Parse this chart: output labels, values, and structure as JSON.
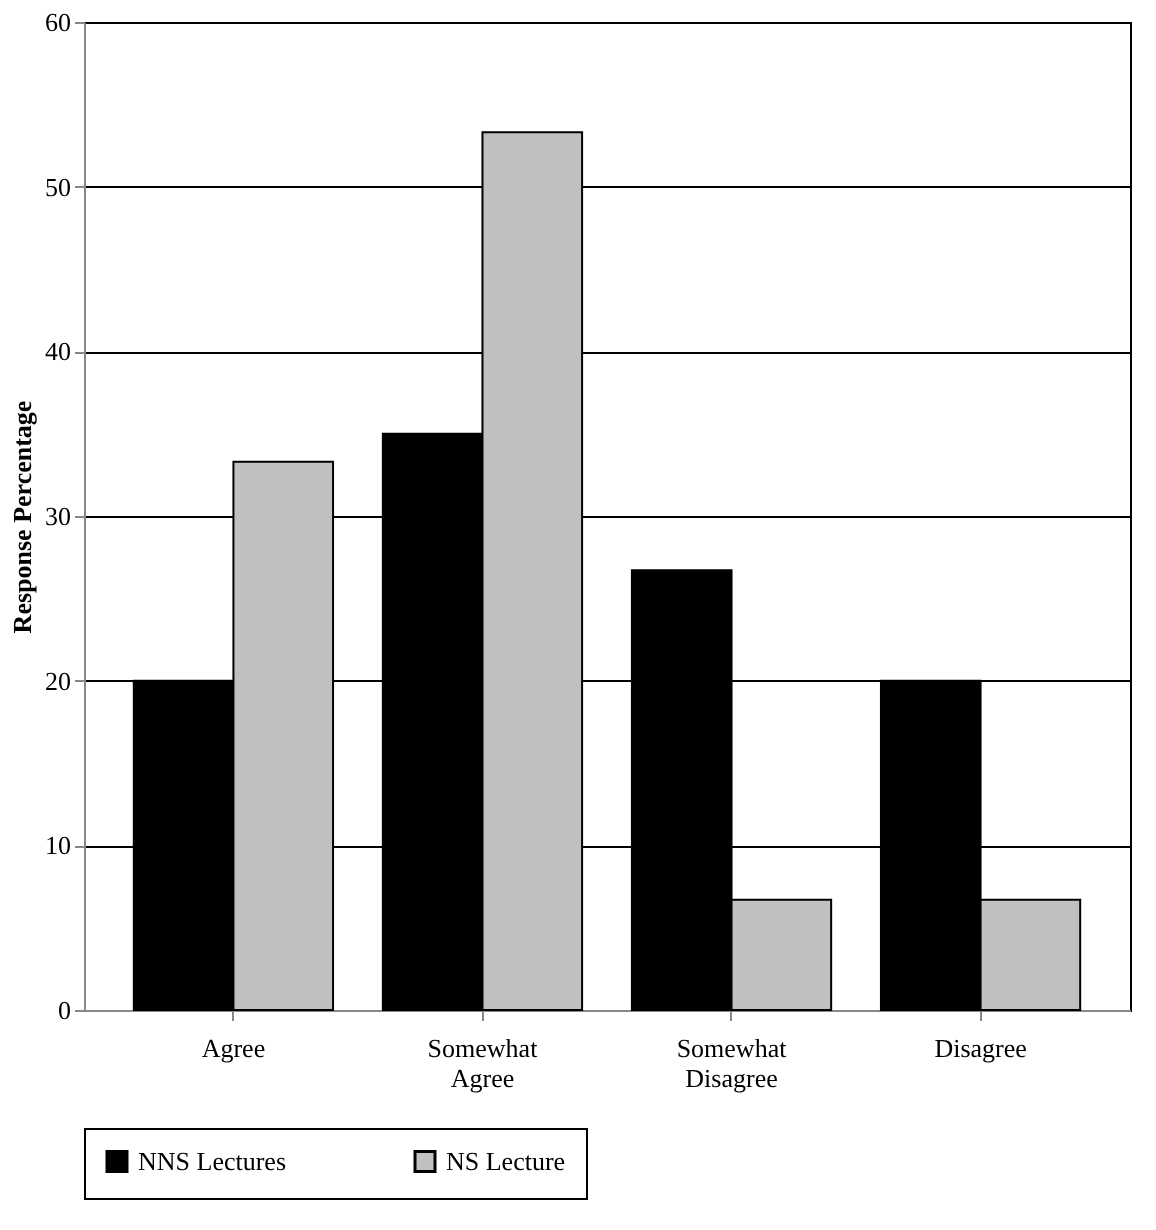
{
  "chart_data": {
    "type": "bar",
    "ylabel": "Response Percentage",
    "categories": [
      "Agree",
      "Somewhat Agree",
      "Somewhat Disagree",
      "Disagree"
    ],
    "series": [
      {
        "name": "NNS Lectures",
        "color": "#000000",
        "values": [
          20,
          35,
          26.7,
          20
        ]
      },
      {
        "name": "NS Lecture",
        "color": "#c0c0c0",
        "values": [
          33.3,
          53.3,
          6.7,
          6.7
        ]
      }
    ],
    "ylim": [
      0,
      60
    ],
    "yticks": [
      0,
      10,
      20,
      30,
      40,
      50,
      60
    ],
    "grid": "y",
    "legend": "bottom"
  }
}
